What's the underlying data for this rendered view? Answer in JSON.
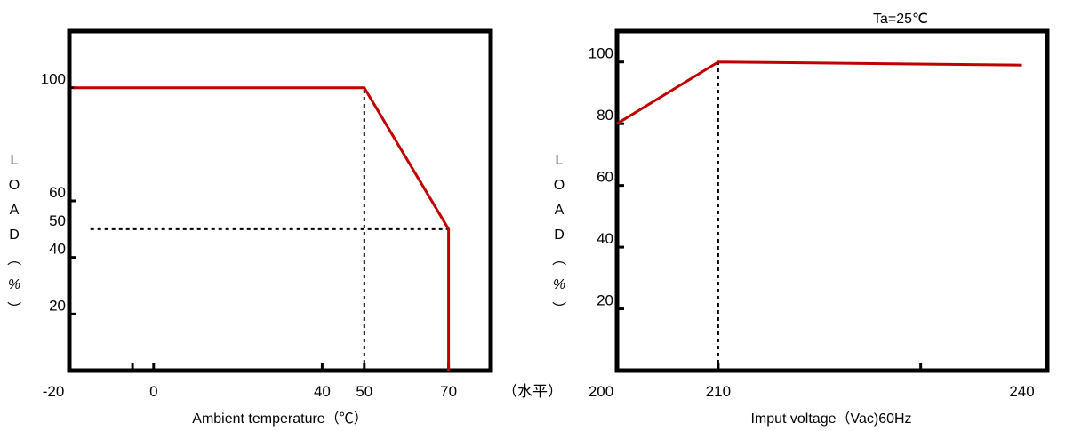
{
  "chart_data": [
    {
      "type": "line",
      "title": "",
      "xlabel": "Ambient temperature（℃）",
      "ylabel": "LOAD（%）",
      "xlim": [
        -20,
        80
      ],
      "ylim": [
        0,
        120
      ],
      "x_ticks": [
        -20,
        0,
        40,
        50,
        70
      ],
      "x_tick_marks": [
        -5,
        0,
        40,
        50,
        70
      ],
      "y_ticks": [
        100,
        60,
        50,
        40,
        20
      ],
      "y_tick_marks": [
        100,
        60,
        40,
        20
      ],
      "extra_label": "（水平）",
      "series": [
        {
          "values": [
            [
              -19,
              100
            ],
            [
              50,
              100
            ],
            [
              70,
              50
            ],
            [
              70,
              0
            ]
          ]
        }
      ],
      "guides": [
        {
          "type": "vertical",
          "x": 50,
          "from": 0,
          "to": 100
        },
        {
          "type": "horizontal",
          "y": 50,
          "from": -15,
          "to": 70
        }
      ],
      "line_color": "#c00000"
    },
    {
      "type": "line",
      "title": "",
      "annotation": "Ta=25℃",
      "xlabel": "Imput voltage（Vac)60Hz",
      "ylabel": "LOAD（%）",
      "xlim": [
        200,
        242.5
      ],
      "ylim": [
        0,
        110
      ],
      "x_ticks": [
        200,
        210,
        240
      ],
      "x_tick_marks": [
        210,
        230
      ],
      "y_ticks": [
        100,
        80,
        60,
        40,
        20
      ],
      "y_tick_marks": [
        100,
        80,
        60,
        40,
        20
      ],
      "series": [
        {
          "values": [
            [
              200,
              80
            ],
            [
              210,
              100
            ],
            [
              240,
              99
            ]
          ]
        }
      ],
      "guides": [
        {
          "type": "vertical",
          "x": 210,
          "from": 0,
          "to": 100
        }
      ],
      "line_color": "#c00000"
    }
  ]
}
